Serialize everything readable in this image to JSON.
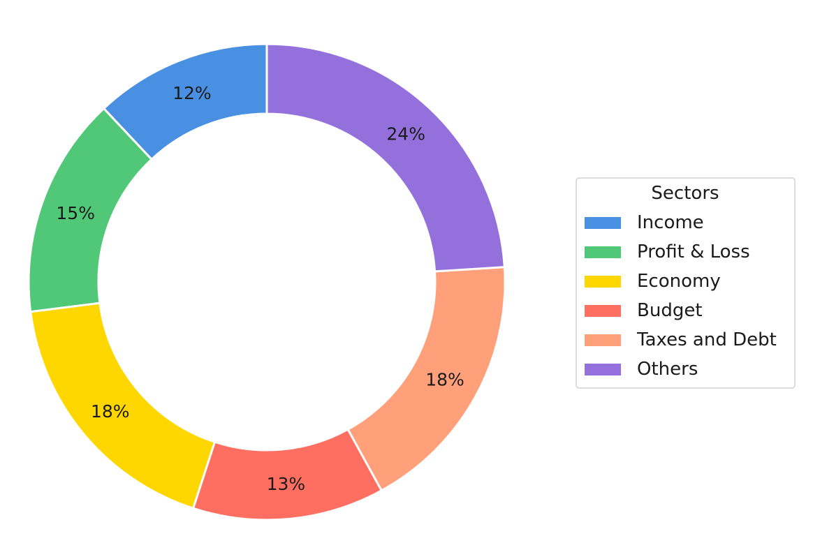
{
  "chart_data": {
    "type": "pie",
    "variant": "donut",
    "start_angle_deg": 90,
    "direction": "counterclockwise",
    "categories": [
      "Income",
      "Profit & Loss",
      "Economy",
      "Budget",
      "Taxes and Debt",
      "Others"
    ],
    "values": [
      12,
      15,
      18,
      13,
      18,
      24
    ],
    "labels": [
      "12%",
      "15%",
      "18%",
      "13%",
      "18%",
      "24%"
    ],
    "colors": [
      "#4A90E2",
      "#50C878",
      "#FFD700",
      "#FF6F61",
      "#FFA07A",
      "#9370DB"
    ],
    "legend": {
      "title": "Sectors",
      "entries": [
        "Income",
        "Profit & Loss",
        "Economy",
        "Budget",
        "Taxes and Debt",
        "Others"
      ],
      "placement": "right"
    }
  }
}
